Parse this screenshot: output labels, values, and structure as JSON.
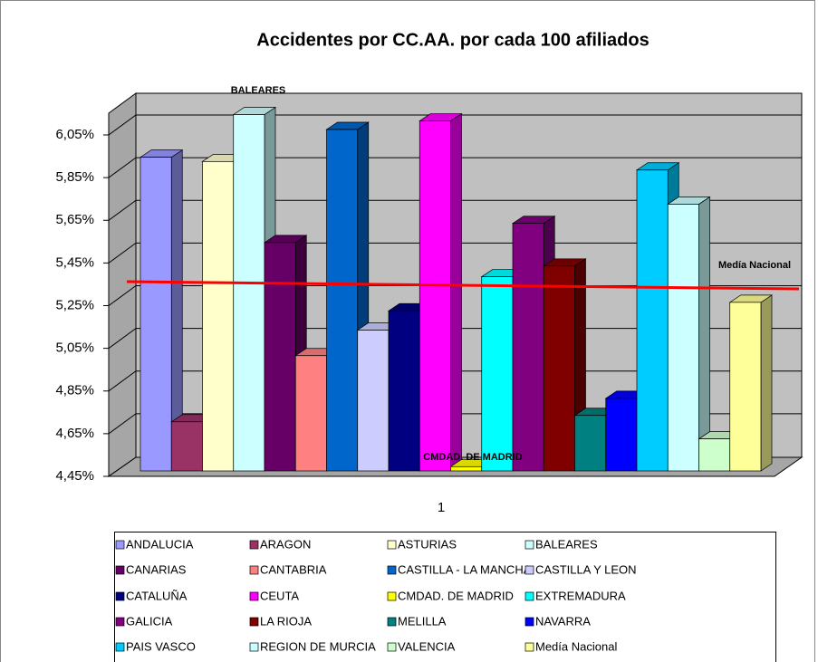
{
  "chart_data": {
    "type": "bar3d",
    "title": "Accidentes por CC.AA. por cada 100 afiliados",
    "categories": [
      "1"
    ],
    "annotations": [
      "BALEARES",
      "CMDAD. DE MADRID",
      "Medía Nacional"
    ],
    "ylim": [
      4.45,
      6.05
    ],
    "yticks": [
      {
        "value": 4.45,
        "label": "4,45%"
      },
      {
        "value": 4.65,
        "label": "4,65%"
      },
      {
        "value": 4.85,
        "label": "4,85%"
      },
      {
        "value": 5.05,
        "label": "5,05%"
      },
      {
        "value": 5.25,
        "label": "5,25%"
      },
      {
        "value": 5.45,
        "label": "5,45%"
      },
      {
        "value": 5.65,
        "label": "5,65%"
      },
      {
        "value": 5.85,
        "label": "5,85%"
      },
      {
        "value": 6.05,
        "label": "6,05%"
      }
    ],
    "grid": true,
    "legend": "bottom",
    "series": [
      {
        "name": "ANDALUCIA",
        "color": "#9999ff",
        "values": [
          5.92
        ]
      },
      {
        "name": "ARAGON",
        "color": "#993366",
        "values": [
          4.68
        ]
      },
      {
        "name": "ASTURIAS",
        "color": "#ffffcc",
        "values": [
          5.9
        ]
      },
      {
        "name": "BALEARES",
        "color": "#ccffff",
        "values": [
          6.12
        ]
      },
      {
        "name": "CANARIAS",
        "color": "#660066",
        "values": [
          5.52
        ]
      },
      {
        "name": "CANTABRIA",
        "color": "#ff8080",
        "values": [
          4.99
        ]
      },
      {
        "name": "CASTILLA - LA MANCHA",
        "color": "#0066cc",
        "values": [
          6.05
        ]
      },
      {
        "name": "CASTILLA Y LEON",
        "color": "#ccccff",
        "values": [
          5.11
        ]
      },
      {
        "name": "CATALUÑA",
        "color": "#000080",
        "values": [
          5.2
        ]
      },
      {
        "name": "CEUTA",
        "color": "#ff00ff",
        "values": [
          6.09
        ]
      },
      {
        "name": "CMDAD. DE MADRID",
        "color": "#ffff00",
        "values": [
          4.47
        ]
      },
      {
        "name": "EXTREMADURA",
        "color": "#00ffff",
        "values": [
          5.36
        ]
      },
      {
        "name": "GALICIA",
        "color": "#800080",
        "values": [
          5.61
        ]
      },
      {
        "name": "LA RIOJA",
        "color": "#800000",
        "values": [
          5.41
        ]
      },
      {
        "name": "MELILLA",
        "color": "#008080",
        "values": [
          4.71
        ]
      },
      {
        "name": "NAVARRA",
        "color": "#0000ff",
        "values": [
          4.79
        ]
      },
      {
        "name": "PAIS VASCO",
        "color": "#00ccff",
        "values": [
          5.86
        ]
      },
      {
        "name": "REGION DE MURCIA",
        "color": "#ccffff",
        "values": [
          5.7
        ]
      },
      {
        "name": "VALENCIA",
        "color": "#ccffcc",
        "values": [
          4.6
        ]
      },
      {
        "name": "Medía Nacional",
        "color": "#ffff99",
        "values": [
          5.24
        ]
      }
    ]
  }
}
